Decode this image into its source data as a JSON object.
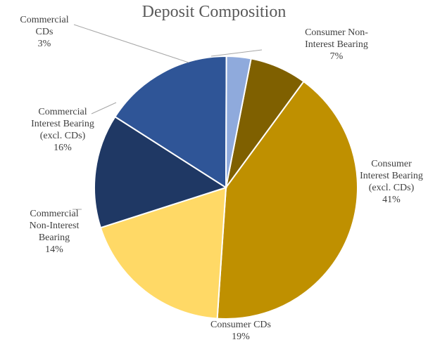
{
  "chart_data": {
    "type": "pie",
    "title": "Deposit Composition",
    "slices": [
      {
        "label": "Consumer Non-Interest Bearing",
        "label_lines": [
          "Consumer Non-",
          "Interest Bearing"
        ],
        "value": 7,
        "pct_label": "7%",
        "color": "#7F6000"
      },
      {
        "label": "Consumer Interest Bearing (excl. CDs)",
        "label_lines": [
          "Consumer",
          "Interest Bearing",
          "(excl. CDs)"
        ],
        "value": 41,
        "pct_label": "41%",
        "color": "#BF9000"
      },
      {
        "label": "Consumer CDs",
        "label_lines": [
          "Consumer CDs"
        ],
        "value": 19,
        "pct_label": "19%",
        "color": "#FFD966"
      },
      {
        "label": "Commercial Non-Interest Bearing",
        "label_lines": [
          "Commercial",
          "Non-Interest",
          "Bearing"
        ],
        "value": 14,
        "pct_label": "14%",
        "color": "#1F3864"
      },
      {
        "label": "Commercial Interest Bearing (excl. CDs)",
        "label_lines": [
          "Commercial",
          "Interest Bearing",
          "(excl. CDs)"
        ],
        "value": 16,
        "pct_label": "16%",
        "color": "#2F5597"
      },
      {
        "label": "Commercial CDs",
        "label_lines": [
          "Commercial",
          "CDs"
        ],
        "value": 3,
        "pct_label": "3%",
        "color": "#8FAADC"
      }
    ]
  }
}
